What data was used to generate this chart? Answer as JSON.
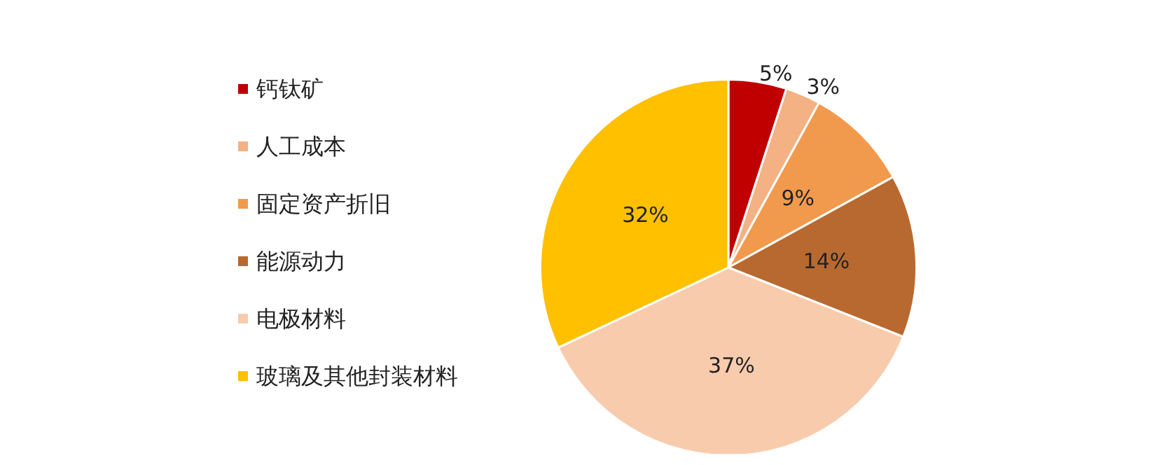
{
  "chart_data": {
    "type": "pie",
    "categories": [
      "钙钛矿",
      "人工成本",
      "固定资产折旧",
      "能源动力",
      "电极材料",
      "玻璃及其他封装材料"
    ],
    "values": [
      5,
      3,
      9,
      14,
      37,
      32
    ],
    "colors": [
      "#c00000",
      "#f4b183",
      "#f19a4e",
      "#b8692f",
      "#f8cbad",
      "#ffc000"
    ],
    "value_labels": [
      "5%",
      "3%",
      "9%",
      "14%",
      "37%",
      "32%"
    ],
    "legend": "left"
  }
}
